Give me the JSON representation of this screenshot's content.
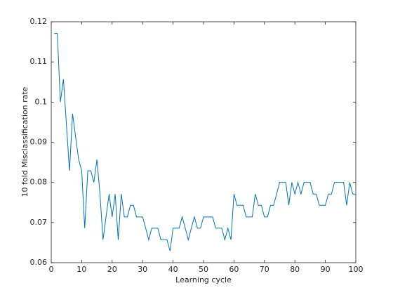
{
  "chart_data": {
    "type": "line",
    "x_label": "Learning cycle",
    "y_label": "10 fold Misclassification rate",
    "x": [
      1,
      2,
      3,
      4,
      5,
      6,
      7,
      8,
      9,
      10,
      11,
      12,
      13,
      14,
      15,
      16,
      17,
      18,
      19,
      20,
      21,
      22,
      23,
      24,
      25,
      26,
      27,
      28,
      29,
      30,
      31,
      32,
      33,
      34,
      35,
      36,
      37,
      38,
      39,
      40,
      41,
      42,
      43,
      44,
      45,
      46,
      47,
      48,
      49,
      50,
      51,
      52,
      53,
      54,
      55,
      56,
      57,
      58,
      59,
      60,
      61,
      62,
      63,
      64,
      65,
      66,
      67,
      68,
      69,
      70,
      71,
      72,
      73,
      74,
      75,
      76,
      77,
      78,
      79,
      80,
      81,
      82,
      83,
      84,
      85,
      86,
      87,
      88,
      89,
      90,
      91,
      92,
      93,
      94,
      95,
      96,
      97,
      98,
      99,
      100
    ],
    "series": [
      {
        "color": "#0072bd",
        "values": [
          0.1171,
          0.1171,
          0.1,
          0.1057,
          0.0943,
          0.0829,
          0.0971,
          0.0914,
          0.0857,
          0.0829,
          0.0686,
          0.0829,
          0.0829,
          0.08,
          0.0857,
          0.0771,
          0.0657,
          0.0714,
          0.0771,
          0.0714,
          0.0771,
          0.0657,
          0.0771,
          0.0714,
          0.0714,
          0.0743,
          0.0743,
          0.0714,
          0.0714,
          0.0714,
          0.0686,
          0.0657,
          0.0686,
          0.0686,
          0.0686,
          0.0657,
          0.0657,
          0.0657,
          0.0629,
          0.0686,
          0.0686,
          0.0686,
          0.0714,
          0.0686,
          0.0657,
          0.0686,
          0.0714,
          0.0686,
          0.0686,
          0.0714,
          0.0714,
          0.0714,
          0.0714,
          0.0686,
          0.0686,
          0.0686,
          0.0657,
          0.0686,
          0.0657,
          0.0771,
          0.0743,
          0.0743,
          0.0743,
          0.0714,
          0.0714,
          0.0714,
          0.0771,
          0.0743,
          0.0743,
          0.0714,
          0.0714,
          0.0743,
          0.0743,
          0.0771,
          0.08,
          0.08,
          0.08,
          0.0743,
          0.08,
          0.0771,
          0.08,
          0.0771,
          0.08,
          0.08,
          0.08,
          0.0771,
          0.0771,
          0.0743,
          0.0743,
          0.0743,
          0.0771,
          0.0771,
          0.08,
          0.08,
          0.08,
          0.08,
          0.0743,
          0.08,
          0.0771,
          0.0771
        ]
      }
    ],
    "xlim": [
      0,
      100
    ],
    "xticks": [
      0,
      10,
      20,
      30,
      40,
      50,
      60,
      70,
      80,
      90,
      100
    ],
    "ylim": [
      0.06,
      0.12
    ],
    "yticks": [
      0.06,
      0.07,
      0.08,
      0.09,
      0.1,
      0.11,
      0.12
    ]
  }
}
